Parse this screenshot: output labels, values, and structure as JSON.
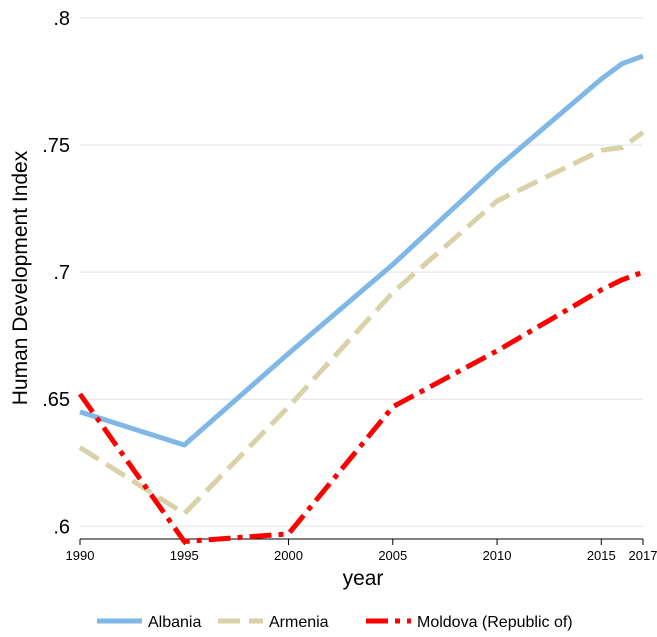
{
  "chart_data": {
    "type": "line",
    "xlabel": "year",
    "ylabel": "Human Development Index",
    "xlim": [
      1990,
      2017
    ],
    "ylim": [
      0.595,
      0.8
    ],
    "x_ticks": [
      1990,
      1995,
      2000,
      2005,
      2010,
      2015,
      2017
    ],
    "y_ticks": [
      {
        "value": 0.6,
        "label": ".6"
      },
      {
        "value": 0.65,
        "label": ".65"
      },
      {
        "value": 0.7,
        "label": ".7"
      },
      {
        "value": 0.75,
        "label": ".75"
      },
      {
        "value": 0.8,
        "label": ".8"
      }
    ],
    "grid": "horizontal",
    "legend_position": "bottom",
    "series": [
      {
        "name": "Albania",
        "color": "#7fb8e6",
        "style": "solid",
        "x": [
          1990,
          1995,
          2000,
          2005,
          2010,
          2015,
          2016,
          2017
        ],
        "values": [
          0.645,
          0.632,
          0.668,
          0.703,
          0.741,
          0.776,
          0.782,
          0.785
        ]
      },
      {
        "name": "Armenia",
        "color": "#d9d2a8",
        "style": "dash",
        "x": [
          1990,
          1995,
          2000,
          2005,
          2010,
          2015,
          2016,
          2017
        ],
        "values": [
          0.631,
          0.605,
          0.647,
          0.692,
          0.728,
          0.748,
          0.749,
          0.755
        ]
      },
      {
        "name": "Moldova (Republic of)",
        "color": "#ff0000",
        "style": "dashdot",
        "x": [
          1990,
          1995,
          2000,
          2005,
          2010,
          2015,
          2016,
          2017
        ],
        "values": [
          0.652,
          0.594,
          0.597,
          0.647,
          0.669,
          0.693,
          0.697,
          0.7
        ]
      }
    ]
  }
}
